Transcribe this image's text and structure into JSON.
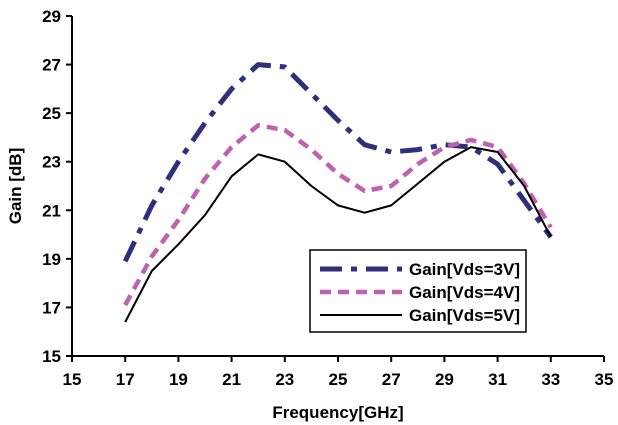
{
  "chart_data": {
    "type": "line",
    "title": "",
    "xlabel": "Frequency[GHz]",
    "ylabel": "Gain [dB]",
    "xlim": [
      15,
      35
    ],
    "ylim": [
      15,
      29
    ],
    "xticks": [
      15,
      17,
      19,
      21,
      23,
      25,
      27,
      29,
      31,
      33,
      35
    ],
    "yticks": [
      15,
      17,
      19,
      21,
      23,
      25,
      27,
      29
    ],
    "grid": false,
    "legend_position": "bottom-right",
    "series": [
      {
        "name": "Gain[Vds=3V]",
        "color": "#2E3079",
        "style": "dash-dot",
        "x": [
          17,
          18,
          19,
          20,
          21,
          22,
          23,
          24,
          25,
          26,
          27,
          28,
          29,
          30,
          31,
          32,
          33
        ],
        "y": [
          18.9,
          21.2,
          23.0,
          24.6,
          26.0,
          27.0,
          26.9,
          25.8,
          24.7,
          23.7,
          23.4,
          23.5,
          23.7,
          23.6,
          22.9,
          21.4,
          19.9
        ]
      },
      {
        "name": "Gain[Vds=4V]",
        "color": "#C060B0",
        "style": "dashed",
        "x": [
          17,
          18,
          19,
          20,
          21,
          22,
          23,
          24,
          25,
          26,
          27,
          28,
          29,
          30,
          31,
          32,
          33
        ],
        "y": [
          17.1,
          19.1,
          20.6,
          22.3,
          23.6,
          24.5,
          24.3,
          23.5,
          22.5,
          21.8,
          22.0,
          22.9,
          23.6,
          23.9,
          23.6,
          22.1,
          20.3
        ]
      },
      {
        "name": "Gain[Vds=5V]",
        "color": "#000000",
        "style": "solid",
        "x": [
          17,
          18,
          19,
          20,
          21,
          22,
          23,
          24,
          25,
          26,
          27,
          28,
          29,
          30,
          31,
          32,
          33
        ],
        "y": [
          16.4,
          18.5,
          19.6,
          20.8,
          22.4,
          23.3,
          23.0,
          22.0,
          21.2,
          20.9,
          21.2,
          22.1,
          23.0,
          23.6,
          23.4,
          22.0,
          19.9
        ]
      }
    ]
  }
}
